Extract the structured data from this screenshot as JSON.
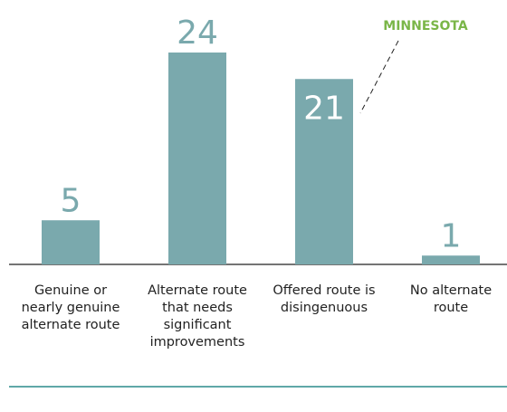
{
  "chart_data": {
    "type": "bar",
    "categories": [
      "Genuine or nearly genuine alternate route",
      "Alternate route that needs significant improvements",
      "Offered route is disingenuous",
      "No alternate route"
    ],
    "values": [
      5,
      24,
      21,
      1
    ],
    "color": "#7aa9ad",
    "annotation": "MINNESOTA"
  }
}
